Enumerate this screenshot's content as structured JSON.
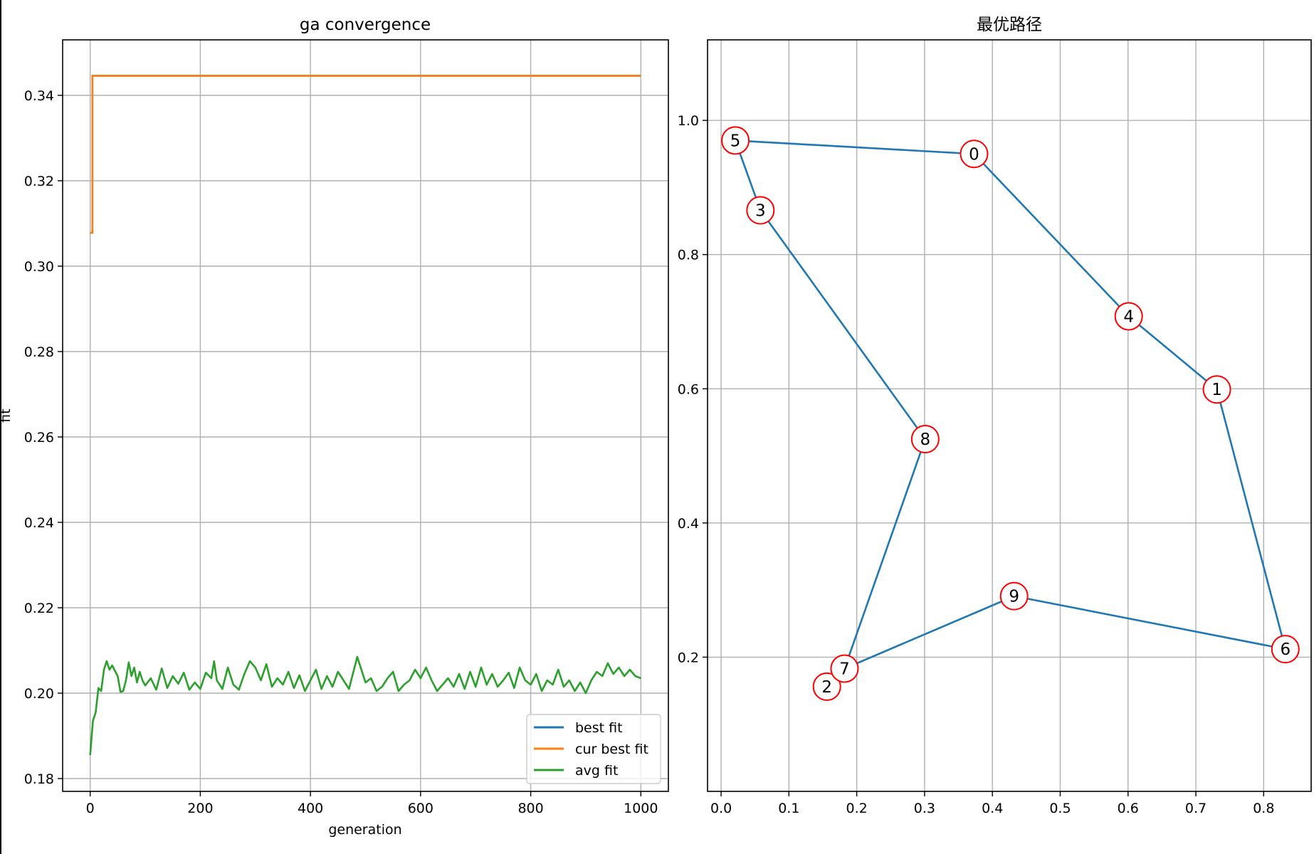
{
  "chart_data": [
    {
      "type": "line",
      "title": "ga convergence",
      "xlabel": "generation",
      "ylabel": "fit",
      "xlim": [
        -50,
        1050
      ],
      "ylim": [
        0.177,
        0.353
      ],
      "xticks": [
        0,
        200,
        400,
        600,
        800,
        1000
      ],
      "xtick_labels": [
        "0",
        "200",
        "400",
        "600",
        "800",
        "1000"
      ],
      "yticks": [
        0.18,
        0.2,
        0.22,
        0.24,
        0.26,
        0.28,
        0.3,
        0.32,
        0.34
      ],
      "ytick_labels": [
        "0.18",
        "0.20",
        "0.22",
        "0.24",
        "0.26",
        "0.28",
        "0.30",
        "0.32",
        "0.34"
      ],
      "grid": true,
      "legend": "lower-right",
      "series": [
        {
          "name": "best fit",
          "color": "#1f77b4",
          "x": [
            0,
            3,
            3,
            4,
            4,
            1000
          ],
          "y": [
            0.3078,
            0.3078,
            0.3078,
            0.3078,
            0.3446,
            0.3446
          ]
        },
        {
          "name": "cur best fit",
          "color": "#ff7f0e",
          "x": [
            0,
            3,
            3,
            4,
            4,
            1000
          ],
          "y": [
            0.3078,
            0.3078,
            0.3078,
            0.3078,
            0.3446,
            0.3446
          ]
        },
        {
          "name": "avg fit",
          "color": "#2ca02c",
          "x": [
            0,
            5,
            10,
            15,
            20,
            25,
            30,
            35,
            40,
            45,
            50,
            55,
            60,
            65,
            70,
            75,
            80,
            85,
            90,
            95,
            100,
            110,
            120,
            130,
            140,
            150,
            160,
            170,
            180,
            190,
            200,
            210,
            220,
            225,
            230,
            240,
            250,
            260,
            270,
            280,
            290,
            300,
            310,
            320,
            330,
            340,
            350,
            360,
            370,
            380,
            390,
            400,
            410,
            420,
            430,
            440,
            450,
            460,
            470,
            480,
            485,
            490,
            500,
            510,
            520,
            530,
            540,
            550,
            560,
            570,
            580,
            590,
            600,
            610,
            620,
            630,
            640,
            650,
            660,
            670,
            680,
            690,
            700,
            710,
            720,
            730,
            740,
            750,
            760,
            770,
            780,
            790,
            800,
            810,
            820,
            830,
            840,
            850,
            860,
            870,
            880,
            890,
            900,
            910,
            920,
            930,
            940,
            950,
            960,
            970,
            980,
            990,
            1000
          ],
          "y": [
            0.1855,
            0.1935,
            0.1955,
            0.2012,
            0.2005,
            0.2055,
            0.2075,
            0.2055,
            0.2065,
            0.2052,
            0.204,
            0.2003,
            0.2005,
            0.203,
            0.2072,
            0.204,
            0.206,
            0.2025,
            0.205,
            0.203,
            0.2018,
            0.2035,
            0.2008,
            0.2058,
            0.2012,
            0.204,
            0.2022,
            0.2048,
            0.2008,
            0.2025,
            0.201,
            0.2048,
            0.2035,
            0.2075,
            0.203,
            0.201,
            0.206,
            0.202,
            0.2008,
            0.2045,
            0.2075,
            0.206,
            0.203,
            0.2068,
            0.2015,
            0.2035,
            0.202,
            0.205,
            0.2012,
            0.2042,
            0.2005,
            0.203,
            0.2055,
            0.201,
            0.204,
            0.2015,
            0.205,
            0.203,
            0.201,
            0.206,
            0.2085,
            0.2065,
            0.2025,
            0.2035,
            0.2005,
            0.2015,
            0.2035,
            0.205,
            0.2005,
            0.202,
            0.203,
            0.2055,
            0.2035,
            0.206,
            0.203,
            0.2005,
            0.202,
            0.2035,
            0.2015,
            0.2045,
            0.201,
            0.205,
            0.2015,
            0.206,
            0.202,
            0.2045,
            0.2015,
            0.203,
            0.2048,
            0.2012,
            0.206,
            0.203,
            0.202,
            0.2045,
            0.2005,
            0.203,
            0.202,
            0.2055,
            0.2015,
            0.203,
            0.2005,
            0.2025,
            0.2,
            0.203,
            0.205,
            0.204,
            0.207,
            0.2045,
            0.206,
            0.204,
            0.2055,
            0.204,
            0.2035
          ]
        }
      ]
    },
    {
      "type": "scatter",
      "title": "最优路径",
      "xlim": [
        -0.02,
        0.87
      ],
      "ylim": [
        0.0,
        1.12
      ],
      "xticks": [
        0.0,
        0.1,
        0.2,
        0.3,
        0.4,
        0.5,
        0.6,
        0.7,
        0.8
      ],
      "xtick_labels": [
        "0.0",
        "0.1",
        "0.2",
        "0.3",
        "0.4",
        "0.5",
        "0.6",
        "0.7",
        "0.8"
      ],
      "yticks": [
        0.2,
        0.4,
        0.6,
        0.8,
        1.0
      ],
      "ytick_labels": [
        "0.2",
        "0.4",
        "0.6",
        "0.8",
        "1.0"
      ],
      "grid": true,
      "route_color": "#1f77b4",
      "node_edge_color": "#ff0000",
      "nodes": [
        {
          "id": "0",
          "x": 0.373,
          "y": 0.95
        },
        {
          "id": "1",
          "x": 0.731,
          "y": 0.599
        },
        {
          "id": "2",
          "x": 0.156,
          "y": 0.156
        },
        {
          "id": "3",
          "x": 0.058,
          "y": 0.866
        },
        {
          "id": "4",
          "x": 0.601,
          "y": 0.708
        },
        {
          "id": "5",
          "x": 0.021,
          "y": 0.97
        },
        {
          "id": "6",
          "x": 0.832,
          "y": 0.212
        },
        {
          "id": "7",
          "x": 0.182,
          "y": 0.183
        },
        {
          "id": "8",
          "x": 0.301,
          "y": 0.525
        },
        {
          "id": "9",
          "x": 0.432,
          "y": 0.291
        }
      ],
      "route": [
        "0",
        "5",
        "3",
        "8",
        "7",
        "9",
        "6",
        "1",
        "4",
        "0"
      ]
    }
  ]
}
